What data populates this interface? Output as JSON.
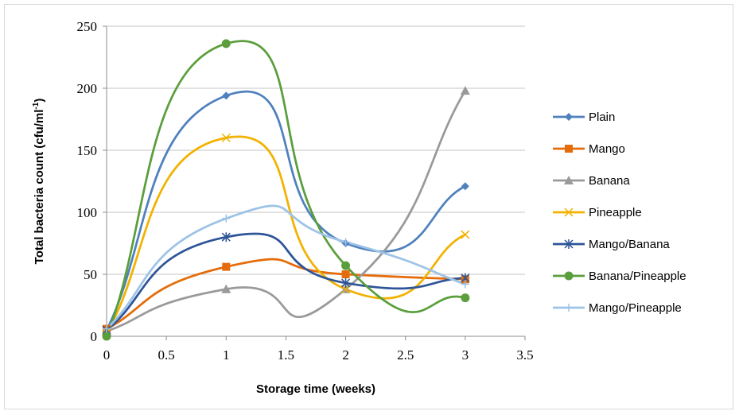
{
  "chart_data": {
    "type": "line",
    "smooth": true,
    "xlabel": "Storage time (weeks)",
    "ylabel": "Total bacteria count (cfu/ml",
    "ylabel_superscript": "-1",
    "ylabel_close": ")",
    "xlim": [
      0,
      3.5
    ],
    "ylim": [
      0,
      250
    ],
    "x_ticks": [
      "0",
      "0.5",
      "1",
      "1.5",
      "2",
      "2.5",
      "3",
      "3.5"
    ],
    "x_tick_values": [
      0,
      0.5,
      1,
      1.5,
      2,
      2.5,
      3,
      3.5
    ],
    "y_ticks": [
      "0",
      "50",
      "100",
      "150",
      "200",
      "250"
    ],
    "y_tick_values": [
      0,
      50,
      100,
      150,
      200,
      250
    ],
    "grid": "horizontal",
    "legend_position": "right",
    "x": [
      0,
      1,
      2,
      3
    ],
    "series": [
      {
        "name": "Plain",
        "values": [
          5,
          194,
          75,
          121
        ],
        "color": "#4f81bd",
        "marker": "diamond"
      },
      {
        "name": "Mango",
        "values": [
          6,
          56,
          50,
          46
        ],
        "color": "#e46c0a",
        "marker": "square"
      },
      {
        "name": "Banana",
        "values": [
          4,
          38,
          38,
          198
        ],
        "color": "#9a9a9a",
        "marker": "triangle"
      },
      {
        "name": "Pineapple",
        "values": [
          3,
          160,
          38,
          82
        ],
        "color": "#f2b200",
        "marker": "x"
      },
      {
        "name": "Mango/Banana",
        "values": [
          5,
          80,
          43,
          47
        ],
        "color": "#2e5597",
        "marker": "asterisk"
      },
      {
        "name": "Banana/Pineapple",
        "values": [
          0,
          236,
          57,
          31
        ],
        "color": "#5b9e3c",
        "marker": "circle"
      },
      {
        "name": "Mango/Pineapple",
        "values": [
          6,
          95,
          76,
          42
        ],
        "color": "#9dc3e6",
        "marker": "plus"
      }
    ]
  }
}
